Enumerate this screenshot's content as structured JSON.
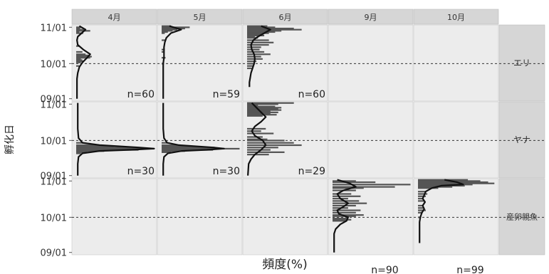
{
  "chart_data": {
    "type": "histogram-facet",
    "ylabel": "孵化日",
    "xlabel": "頻度(%)",
    "yticks": [
      "11/01",
      "10/01",
      "09/01"
    ],
    "ylim": [
      "09/01",
      "11/03"
    ],
    "reference_line": "10/01",
    "columns": [
      "4月",
      "5月",
      "6月",
      "9月",
      "10月"
    ],
    "rows": [
      "エリ",
      "ヤナ",
      "産卵親魚"
    ],
    "panels": [
      {
        "row": "エリ",
        "column": "4月",
        "n": "n=60",
        "bars": [
          [
            61,
            6
          ],
          [
            60,
            5
          ],
          [
            59,
            10
          ],
          [
            58,
            18
          ],
          [
            57,
            4
          ],
          [
            56,
            9
          ],
          [
            45,
            4
          ],
          [
            40,
            8
          ],
          [
            38,
            12
          ],
          [
            37,
            16
          ],
          [
            36,
            20
          ],
          [
            35,
            18
          ],
          [
            34,
            6
          ],
          [
            33,
            8
          ],
          [
            32,
            10
          ],
          [
            31,
            6
          ],
          [
            28,
            4
          ]
        ],
        "density": [
          [
            62,
            4
          ],
          [
            59,
            12
          ],
          [
            56,
            7
          ],
          [
            53,
            2
          ],
          [
            50,
            1
          ],
          [
            46,
            2
          ],
          [
            42,
            9
          ],
          [
            38,
            18
          ],
          [
            35,
            14
          ],
          [
            31,
            8
          ],
          [
            27,
            4
          ],
          [
            22,
            2
          ],
          [
            17,
            1
          ],
          [
            10,
            1
          ],
          [
            5,
            1
          ],
          [
            0,
            1
          ]
        ]
      },
      {
        "row": "エリ",
        "column": "5月",
        "n": "n=59",
        "bars": [
          [
            62,
            12
          ],
          [
            61,
            36
          ],
          [
            60,
            30
          ],
          [
            59,
            20
          ],
          [
            58,
            14
          ],
          [
            57,
            8
          ],
          [
            56,
            4
          ],
          [
            50,
            5
          ],
          [
            42,
            4
          ],
          [
            40,
            3
          ],
          [
            35,
            5
          ],
          [
            30,
            3
          ]
        ],
        "density": [
          [
            62,
            10
          ],
          [
            59,
            25
          ],
          [
            56,
            12
          ],
          [
            52,
            6
          ],
          [
            48,
            4
          ],
          [
            44,
            3
          ],
          [
            40,
            3
          ],
          [
            35,
            3
          ],
          [
            30,
            2
          ],
          [
            20,
            2
          ],
          [
            10,
            2
          ],
          [
            0,
            2
          ]
        ]
      },
      {
        "row": "エリ",
        "column": "6月",
        "n": "n=60",
        "bars": [
          [
            62,
            26
          ],
          [
            61,
            36
          ],
          [
            60,
            60
          ],
          [
            59,
            70
          ],
          [
            58,
            44
          ],
          [
            57,
            36
          ],
          [
            56,
            28
          ],
          [
            55,
            20
          ],
          [
            54,
            22
          ],
          [
            53,
            10
          ],
          [
            52,
            14
          ],
          [
            50,
            28
          ],
          [
            48,
            34
          ],
          [
            46,
            28
          ],
          [
            44,
            18
          ],
          [
            42,
            16
          ],
          [
            40,
            22
          ],
          [
            38,
            30
          ],
          [
            36,
            18
          ],
          [
            34,
            20
          ],
          [
            32,
            12
          ],
          [
            30,
            10
          ],
          [
            28,
            8
          ],
          [
            26,
            6
          ]
        ],
        "density": [
          [
            62,
            18
          ],
          [
            59,
            30
          ],
          [
            56,
            22
          ],
          [
            53,
            14
          ],
          [
            50,
            8
          ],
          [
            46,
            5
          ],
          [
            42,
            6
          ],
          [
            38,
            9
          ],
          [
            34,
            10
          ],
          [
            30,
            9
          ],
          [
            26,
            7
          ],
          [
            22,
            5
          ],
          [
            18,
            4
          ],
          [
            14,
            3
          ],
          [
            10,
            3
          ]
        ]
      },
      {
        "row": "ヤナ",
        "column": "4月",
        "n": "n=30",
        "bars": [
          [
            28,
            10
          ],
          [
            26,
            28
          ],
          [
            25,
            48
          ],
          [
            24,
            76
          ],
          [
            23,
            100
          ],
          [
            22,
            80
          ],
          [
            21,
            36
          ],
          [
            20,
            14
          ],
          [
            19,
            6
          ]
        ],
        "density": [
          [
            62,
            2
          ],
          [
            50,
            2
          ],
          [
            40,
            2
          ],
          [
            32,
            3
          ],
          [
            28,
            8
          ],
          [
            26,
            30
          ],
          [
            24,
            80
          ],
          [
            23,
            100
          ],
          [
            22,
            70
          ],
          [
            21,
            30
          ],
          [
            19,
            8
          ],
          [
            16,
            3
          ],
          [
            10,
            2
          ],
          [
            0,
            2
          ]
        ]
      },
      {
        "row": "ヤナ",
        "column": "5月",
        "n": "n=30",
        "bars": [
          [
            28,
            8
          ],
          [
            26,
            20
          ],
          [
            25,
            42
          ],
          [
            24,
            68
          ],
          [
            23,
            100
          ],
          [
            22,
            66
          ],
          [
            21,
            30
          ],
          [
            20,
            12
          ]
        ],
        "density": [
          [
            62,
            2
          ],
          [
            50,
            2
          ],
          [
            40,
            2
          ],
          [
            32,
            3
          ],
          [
            28,
            7
          ],
          [
            26,
            22
          ],
          [
            24,
            66
          ],
          [
            23,
            80
          ],
          [
            22,
            58
          ],
          [
            21,
            26
          ],
          [
            19,
            8
          ],
          [
            16,
            3
          ],
          [
            10,
            2
          ],
          [
            0,
            2
          ]
        ]
      },
      {
        "row": "ヤナ",
        "column": "6月",
        "n": "n=29",
        "bars": [
          [
            62,
            60
          ],
          [
            61,
            40
          ],
          [
            60,
            14
          ],
          [
            59,
            36
          ],
          [
            58,
            44
          ],
          [
            57,
            40
          ],
          [
            56,
            44
          ],
          [
            55,
            30
          ],
          [
            54,
            40
          ],
          [
            53,
            30
          ],
          [
            52,
            38
          ],
          [
            51,
            20
          ],
          [
            40,
            24
          ],
          [
            38,
            18
          ],
          [
            36,
            34
          ],
          [
            33,
            20
          ],
          [
            31,
            26
          ],
          [
            30,
            48
          ],
          [
            28,
            60
          ],
          [
            26,
            70
          ],
          [
            24,
            40
          ],
          [
            22,
            30
          ],
          [
            20,
            48
          ],
          [
            18,
            28
          ]
        ],
        "density": [
          [
            62,
            6
          ],
          [
            58,
            12
          ],
          [
            54,
            18
          ],
          [
            50,
            24
          ],
          [
            46,
            18
          ],
          [
            42,
            10
          ],
          [
            38,
            6
          ],
          [
            34,
            10
          ],
          [
            30,
            20
          ],
          [
            26,
            24
          ],
          [
            22,
            18
          ],
          [
            18,
            10
          ],
          [
            14,
            5
          ],
          [
            10,
            2
          ],
          [
            0,
            1
          ]
        ]
      },
      {
        "row": "産卵親魚",
        "column": "9月",
        "n": "n=90",
        "bars": [
          [
            61,
            30
          ],
          [
            60,
            55
          ],
          [
            58,
            100
          ],
          [
            56,
            80
          ],
          [
            55,
            40
          ],
          [
            53,
            30
          ],
          [
            50,
            24
          ],
          [
            48,
            36
          ],
          [
            46,
            20
          ],
          [
            44,
            34
          ],
          [
            42,
            44
          ],
          [
            40,
            30
          ],
          [
            38,
            20
          ],
          [
            36,
            36
          ],
          [
            34,
            30
          ],
          [
            32,
            40
          ],
          [
            31,
            30
          ],
          [
            29,
            20
          ],
          [
            28,
            24
          ],
          [
            27,
            18
          ]
        ],
        "density": [
          [
            62,
            6
          ],
          [
            59,
            22
          ],
          [
            56,
            30
          ],
          [
            53,
            14
          ],
          [
            50,
            6
          ],
          [
            46,
            10
          ],
          [
            42,
            20
          ],
          [
            39,
            14
          ],
          [
            36,
            6
          ],
          [
            33,
            8
          ],
          [
            30,
            20
          ],
          [
            27,
            18
          ],
          [
            24,
            10
          ],
          [
            20,
            4
          ],
          [
            16,
            2
          ],
          [
            12,
            2
          ],
          [
            8,
            2
          ],
          [
            4,
            2
          ],
          [
            0,
            2
          ]
        ]
      },
      {
        "row": "産卵親魚",
        "column": "10月",
        "n": "n=99",
        "bars": [
          [
            62,
            64
          ],
          [
            61,
            80
          ],
          [
            60,
            90
          ],
          [
            59,
            98
          ],
          [
            58,
            70
          ],
          [
            57,
            60
          ],
          [
            56,
            44
          ],
          [
            55,
            26
          ],
          [
            52,
            10
          ],
          [
            50,
            12
          ],
          [
            48,
            10
          ],
          [
            46,
            6
          ],
          [
            44,
            8
          ],
          [
            40,
            6
          ],
          [
            38,
            8
          ],
          [
            36,
            10
          ],
          [
            34,
            6
          ],
          [
            30,
            4
          ]
        ],
        "density": [
          [
            62,
            34
          ],
          [
            60,
            50
          ],
          [
            58,
            58
          ],
          [
            57,
            30
          ],
          [
            55,
            18
          ],
          [
            52,
            10
          ],
          [
            49,
            8
          ],
          [
            46,
            6
          ],
          [
            43,
            9
          ],
          [
            40,
            6
          ],
          [
            37,
            8
          ],
          [
            34,
            5
          ],
          [
            30,
            3
          ],
          [
            26,
            2
          ],
          [
            20,
            2
          ],
          [
            14,
            2
          ],
          [
            8,
            2
          ]
        ]
      }
    ]
  }
}
